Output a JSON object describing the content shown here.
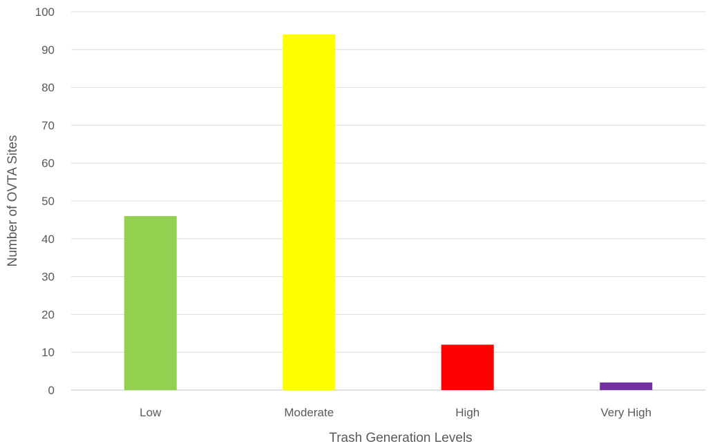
{
  "chart_data": {
    "type": "bar",
    "categories": [
      "Low",
      "Moderate",
      "High",
      "Very High"
    ],
    "values": [
      46,
      94,
      12,
      2
    ],
    "colors": [
      "#92d050",
      "#ffff00",
      "#ff0000",
      "#7030a0"
    ],
    "title": "",
    "xlabel": "Trash Generation Levels",
    "ylabel": "Number of OVTA Sites",
    "ylim": [
      0,
      100
    ],
    "yticks": [
      0,
      10,
      20,
      30,
      40,
      50,
      60,
      70,
      80,
      90,
      100
    ],
    "grid": true,
    "legend": "none"
  }
}
